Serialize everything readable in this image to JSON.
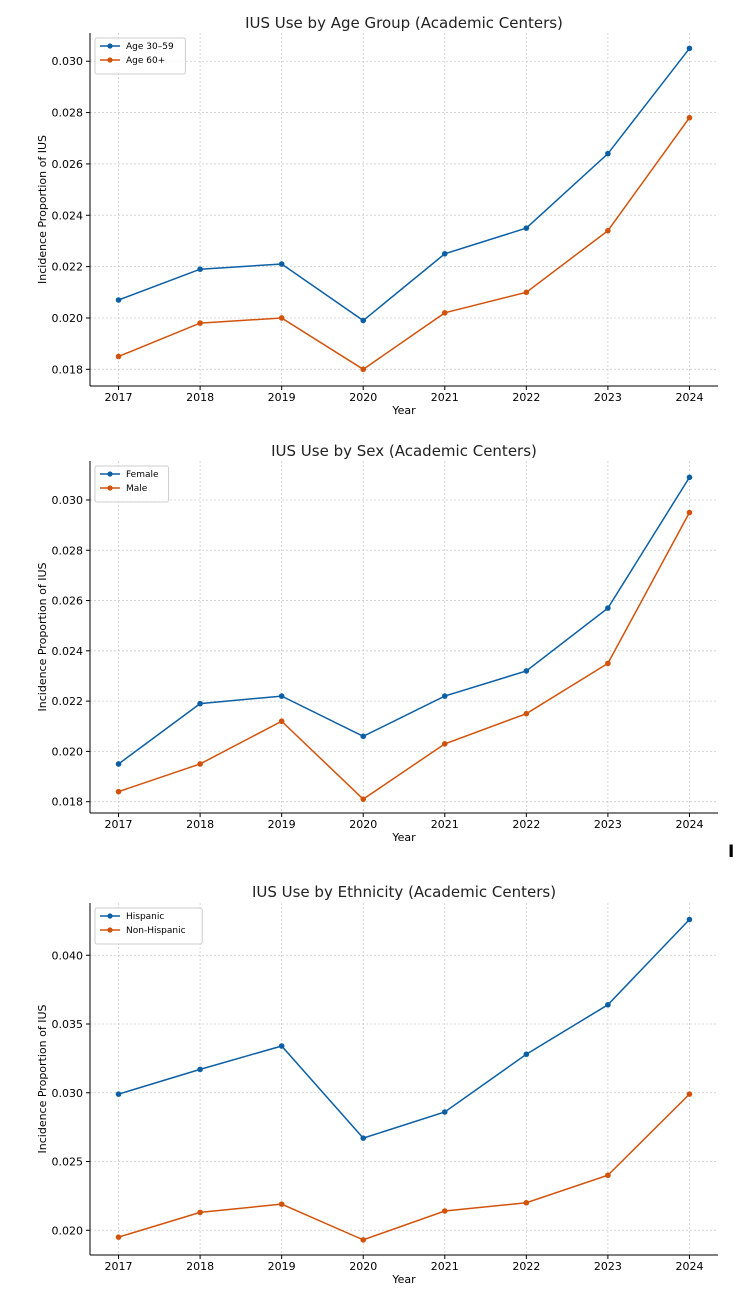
{
  "stray_text": "I",
  "colors": {
    "series1": "#0b5fa5",
    "series2": "#d2520a",
    "grid": "#cccccc",
    "axis": "#000000"
  },
  "chart_data": [
    {
      "type": "line",
      "title": "IUS Use by Age Group (Academic Centers)",
      "xlabel": "Year",
      "ylabel": "Incidence Proportion of IUS",
      "x": [
        2017,
        2018,
        2019,
        2020,
        2021,
        2022,
        2023,
        2024
      ],
      "xlim": [
        2016.65,
        2024.35
      ],
      "ylim": [
        0.01735,
        0.0311
      ],
      "yticks": [
        0.018,
        0.02,
        0.022,
        0.024,
        0.026,
        0.028,
        0.03
      ],
      "ytick_labels": [
        "0.018",
        "0.020",
        "0.022",
        "0.024",
        "0.026",
        "0.028",
        "0.030"
      ],
      "grid": true,
      "legend": "top-left",
      "series": [
        {
          "name": "Age 30–59",
          "values": [
            0.0207,
            0.0219,
            0.0221,
            0.0199,
            0.0225,
            0.0235,
            0.0264,
            0.0305
          ]
        },
        {
          "name": "Age 60+",
          "values": [
            0.0185,
            0.0198,
            0.02,
            0.018,
            0.0202,
            0.021,
            0.0234,
            0.0278
          ]
        }
      ]
    },
    {
      "type": "line",
      "title": "IUS Use by Sex (Academic Centers)",
      "xlabel": "Year",
      "ylabel": "Incidence Proportion of IUS",
      "x": [
        2017,
        2018,
        2019,
        2020,
        2021,
        2022,
        2023,
        2024
      ],
      "xlim": [
        2016.65,
        2024.35
      ],
      "ylim": [
        0.01755,
        0.03155
      ],
      "yticks": [
        0.018,
        0.02,
        0.022,
        0.024,
        0.026,
        0.028,
        0.03
      ],
      "ytick_labels": [
        "0.018",
        "0.020",
        "0.022",
        "0.024",
        "0.026",
        "0.028",
        "0.030"
      ],
      "grid": true,
      "legend": "top-left",
      "series": [
        {
          "name": "Female",
          "values": [
            0.0195,
            0.0219,
            0.0222,
            0.0206,
            0.0222,
            0.0232,
            0.0257,
            0.0309
          ]
        },
        {
          "name": "Male",
          "values": [
            0.0184,
            0.0195,
            0.0212,
            0.0181,
            0.0203,
            0.0215,
            0.0235,
            0.0295
          ]
        }
      ]
    },
    {
      "type": "line",
      "title": "IUS Use by Ethnicity (Academic Centers)",
      "xlabel": "Year",
      "ylabel": "Incidence Proportion of IUS",
      "x": [
        2017,
        2018,
        2019,
        2020,
        2021,
        2022,
        2023,
        2024
      ],
      "xlim": [
        2016.65,
        2024.35
      ],
      "ylim": [
        0.0182,
        0.0438
      ],
      "yticks": [
        0.02,
        0.025,
        0.03,
        0.035,
        0.04
      ],
      "ytick_labels": [
        "0.020",
        "0.025",
        "0.030",
        "0.035",
        "0.040"
      ],
      "grid": true,
      "legend": "top-left",
      "series": [
        {
          "name": "Hispanic",
          "values": [
            0.0299,
            0.0317,
            0.0334,
            0.0267,
            0.0286,
            0.0328,
            0.0364,
            0.0426
          ]
        },
        {
          "name": "Non-Hispanic",
          "values": [
            0.0195,
            0.0213,
            0.0219,
            0.0193,
            0.0214,
            0.022,
            0.024,
            0.0299
          ]
        }
      ]
    }
  ]
}
